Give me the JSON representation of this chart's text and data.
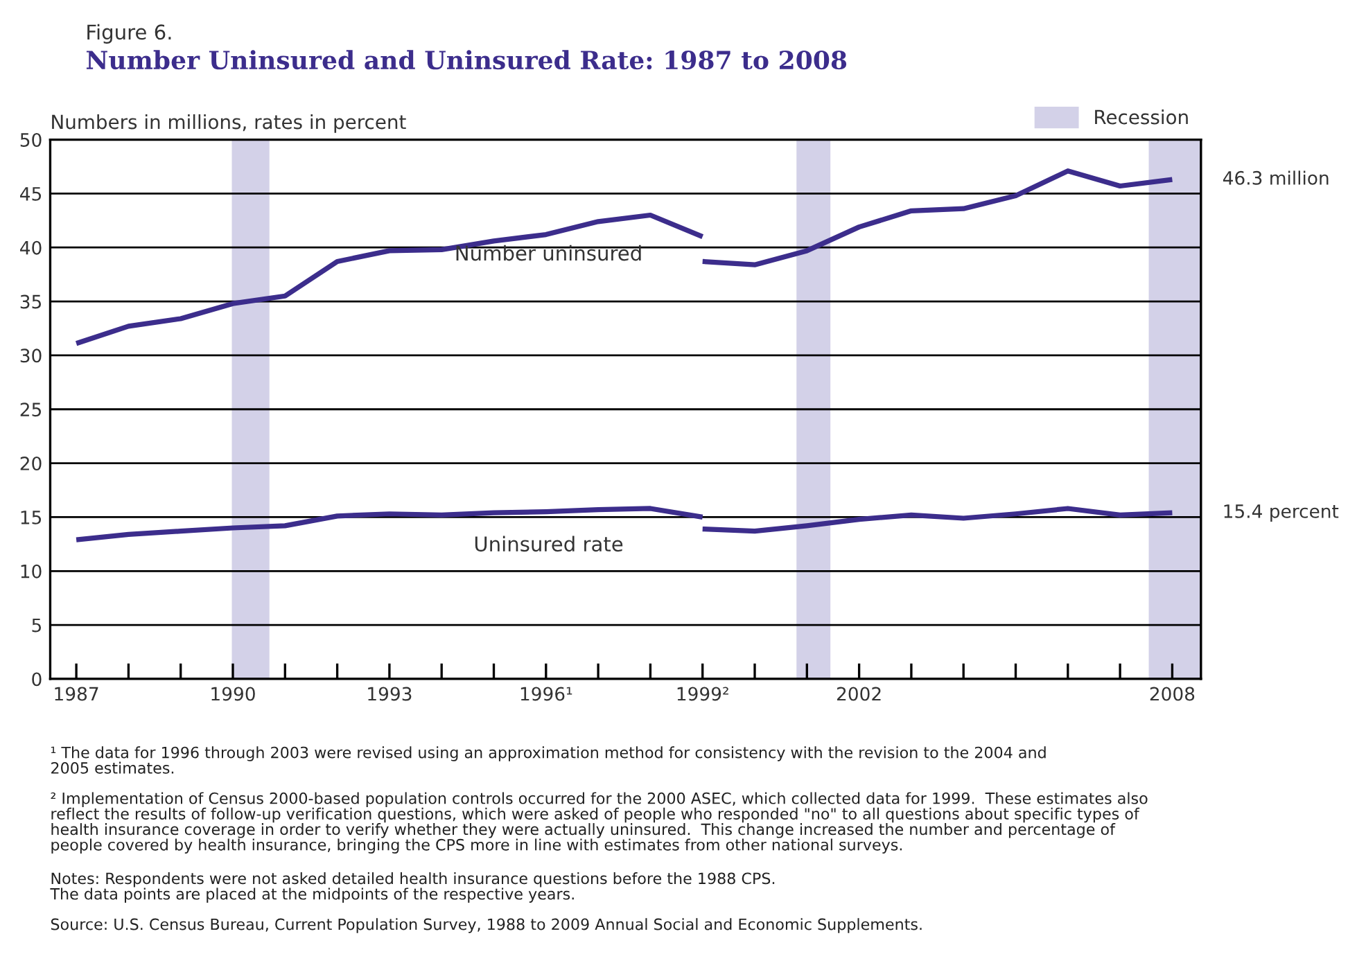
{
  "chart_data": {
    "type": "line",
    "title": "Number Uninsured and Uninsured Rate: 1987 to 2008",
    "subtitle": "Figure 6.",
    "ylabel": "Numbers in millions, rates in percent",
    "series": [
      {
        "name": "Number uninsured",
        "color": "#3c2d8c",
        "x": [
          1987,
          1988,
          1989,
          1990,
          1991,
          1992,
          1993,
          1994,
          1995,
          1996,
          1997,
          1998,
          1999,
          null,
          1999,
          2000,
          2001,
          2002,
          2003,
          2004,
          2005,
          2006,
          2007,
          2008
        ],
        "values": [
          31.1,
          32.7,
          33.4,
          34.8,
          35.5,
          38.7,
          39.7,
          39.8,
          40.6,
          41.2,
          42.4,
          43.0,
          41.0,
          null,
          38.7,
          38.4,
          39.7,
          41.9,
          43.4,
          43.6,
          44.8,
          47.1,
          45.7,
          46.3
        ]
      },
      {
        "name": "Uninsured rate",
        "color": "#3c2d8c",
        "x": [
          1987,
          1988,
          1989,
          1990,
          1991,
          1992,
          1993,
          1994,
          1995,
          1996,
          1997,
          1998,
          1999,
          null,
          1999,
          2000,
          2001,
          2002,
          2003,
          2004,
          2005,
          2006,
          2007,
          2008
        ],
        "values": [
          12.9,
          13.4,
          13.7,
          14.0,
          14.2,
          15.1,
          15.3,
          15.2,
          15.4,
          15.5,
          15.7,
          15.8,
          15.0,
          null,
          13.9,
          13.7,
          14.2,
          14.8,
          15.2,
          14.9,
          15.3,
          15.8,
          15.2,
          15.4
        ]
      }
    ],
    "xlim": [
      1986.5,
      2008.55
    ],
    "xticks": [
      1987,
      {
        "value": 1988,
        "label": null
      },
      {
        "value": 1989,
        "label": null
      },
      1990,
      {
        "value": 1991,
        "label": null
      },
      {
        "value": 1992,
        "label": null
      },
      1993,
      {
        "value": 1994,
        "label": null
      },
      {
        "value": 1995,
        "label": null
      },
      {
        "value": 1996,
        "label": "1996¹"
      },
      {
        "value": 1997,
        "label": null
      },
      {
        "value": 1998,
        "label": null
      },
      {
        "value": 1999,
        "label": "1999²"
      },
      {
        "value": 2000,
        "label": null
      },
      {
        "value": 2001,
        "label": null
      },
      2002,
      {
        "value": 2003,
        "label": null
      },
      {
        "value": 2004,
        "label": null
      },
      {
        "value": 2005,
        "label": null
      },
      {
        "value": 2006,
        "label": null
      },
      {
        "value": 2007,
        "label": null
      },
      2008
    ],
    "ylim": [
      0,
      50
    ],
    "yticks": [
      0,
      5,
      10,
      15,
      20,
      25,
      30,
      35,
      40,
      45,
      50
    ],
    "grid": "y",
    "legend": "top right",
    "line_style": "solid",
    "marker": "none",
    "bands": [
      {
        "axis": "x",
        "from": 1989.98,
        "to": 1990.7,
        "label": "Recession",
        "color": "#d3d1e8"
      },
      {
        "axis": "x",
        "from": 2000.8,
        "to": 2001.45,
        "color": "#d3d1e8"
      },
      {
        "axis": "x",
        "from": 2007.55,
        "to": 2008.55,
        "color": "#d3d1e8"
      }
    ],
    "annotations": [
      {
        "text": "46.3 million",
        "x": 2008,
        "y": 46.3
      },
      {
        "text": "15.4 percent",
        "x": 2008,
        "y": 15.4
      },
      "¹ The data for 1996 through 2003 were revised using an approximation method for consistency with the revision to the 2004 and\n2005 estimates.",
      "² Implementation of Census 2000-based population controls occurred for the 2000 ASEC, which collected data for 1999.  These estimates also\nreflect the results of follow-up verification questions, which were asked of people who responded \"no\" to all questions about specific types of\nhealth insurance coverage in order to verify whether they were actually uninsured.  This change increased the number and percentage of\npeople covered by health insurance, bringing the CPS more in line with estimates from other national surveys.",
      "Notes: Respondents were not asked detailed health insurance questions before the 1988 CPS.\nThe data points are placed at the midpoints of the respective years.",
      "Source: U.S. Census Bureau, Current Population Survey, 1988 to 2009 Annual Social and Economic Supplements."
    ]
  }
}
